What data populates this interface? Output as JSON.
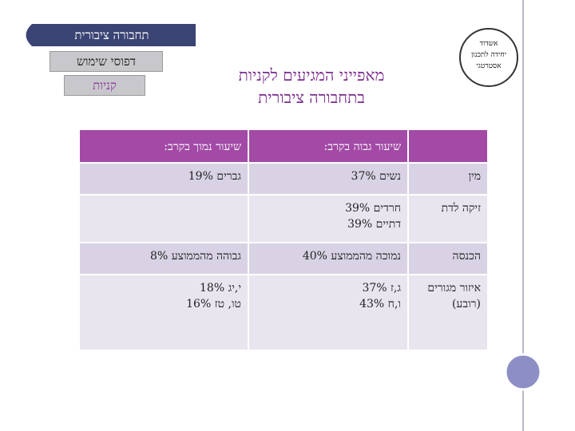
{
  "nav": {
    "tabs": [
      "תחבורה ציבורית",
      "דפוסי שימוש",
      "קניות"
    ]
  },
  "logo": {
    "lines": [
      "אשדוד",
      "יחידה לתכנון",
      "אסטרטגי"
    ]
  },
  "header": {
    "title": [
      "מאפייני המגיעים לקניות",
      "בתחבורה ציבורית"
    ]
  },
  "table": {
    "columns": [
      "שיעור גבוה בקרב:",
      "שיעור נמוך בקרב:"
    ],
    "rows": [
      {
        "label": [
          "מין"
        ],
        "high": [
          "נשים 37%"
        ],
        "low": [
          "גברים 19%"
        ]
      },
      {
        "label": [
          "זיקה לדת"
        ],
        "high": [
          "חרדים 39%",
          "דתיים 39%"
        ],
        "low": []
      },
      {
        "label": [
          "הכנסה"
        ],
        "high": [
          "נמוכה מהממוצע 40%"
        ],
        "low": [
          "גבוהה מהממוצע 8%"
        ]
      },
      {
        "label": [
          "איזור מגורים",
          "(רובע)"
        ],
        "high": [
          "ג,ז 37%",
          "ו,ח 43%"
        ],
        "low": [
          "י,יג 18%",
          "טו, טז 16%"
        ]
      }
    ]
  }
}
